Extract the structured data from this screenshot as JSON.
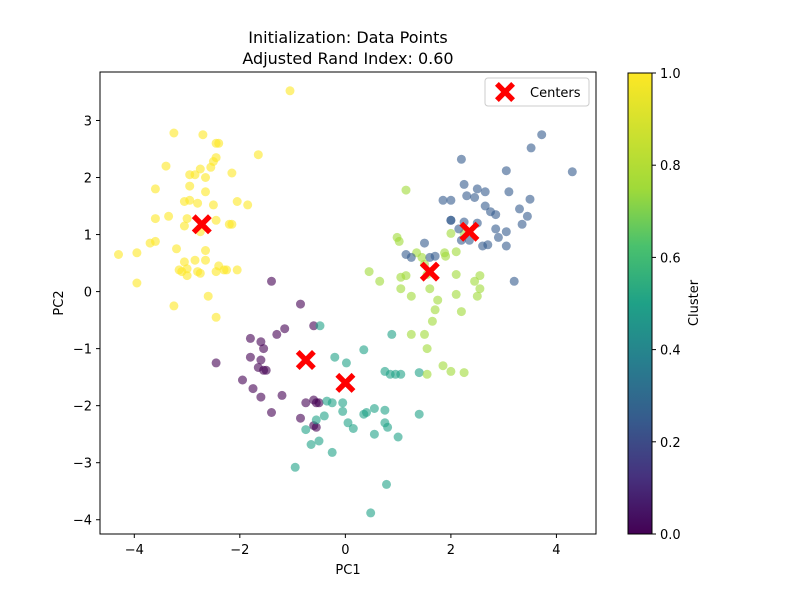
{
  "chart_data": {
    "type": "scatter",
    "title": "Initialization: Data Points",
    "subtitle": "Adjusted Rand Index: 0.60",
    "xlabel": "PC1",
    "ylabel": "PC2",
    "xlim": [
      -4.65,
      4.75
    ],
    "ylim": [
      -4.25,
      3.85
    ],
    "xticks": [
      -4,
      -2,
      0,
      2,
      4
    ],
    "yticks": [
      -4,
      -3,
      -2,
      -1,
      0,
      1,
      2,
      3
    ],
    "grid": false,
    "colorbar": {
      "label": "Cluster",
      "colormap": "viridis",
      "range": [
        0.0,
        1.0
      ],
      "ticks": [
        "0.0",
        "0.2",
        "0.4",
        "0.6",
        "0.8",
        "1.0"
      ]
    },
    "legend": {
      "position": "top-right",
      "entries": [
        "Centers"
      ]
    },
    "marker_alpha": 0.6,
    "clusters": [
      {
        "cluster_value": 0.0,
        "points": [
          [
            -1.4,
            0.18
          ],
          [
            -0.85,
            -0.22
          ],
          [
            -1.15,
            -0.65
          ],
          [
            -1.3,
            -0.75
          ],
          [
            -0.6,
            -0.6
          ],
          [
            -1.8,
            -0.82
          ],
          [
            -1.6,
            -0.88
          ],
          [
            -1.55,
            -1.0
          ],
          [
            -1.8,
            -1.15
          ],
          [
            -1.6,
            -1.2
          ],
          [
            -1.65,
            -1.33
          ],
          [
            -1.55,
            -1.38
          ],
          [
            -1.5,
            -1.38
          ],
          [
            -2.45,
            -1.25
          ],
          [
            -1.95,
            -1.55
          ],
          [
            -1.75,
            -1.7
          ],
          [
            -1.6,
            -1.85
          ],
          [
            -1.2,
            -1.82
          ],
          [
            -0.85,
            -2.22
          ],
          [
            -1.4,
            -2.12
          ],
          [
            -0.75,
            -1.95
          ],
          [
            -0.6,
            -1.9
          ],
          [
            -0.55,
            -1.95
          ],
          [
            -0.5,
            -1.95
          ],
          [
            -0.6,
            -2.35
          ],
          [
            -0.55,
            -2.38
          ]
        ]
      },
      {
        "cluster_value": 0.5,
        "points": [
          [
            -0.48,
            -0.6
          ],
          [
            -0.2,
            -1.15
          ],
          [
            0.02,
            -1.25
          ],
          [
            0.35,
            -1.02
          ],
          [
            0.88,
            -0.75
          ],
          [
            -0.25,
            -1.95
          ],
          [
            -0.35,
            -1.92
          ],
          [
            -0.05,
            -1.95
          ],
          [
            -0.4,
            -2.18
          ],
          [
            -0.55,
            -2.25
          ],
          [
            -0.75,
            -2.42
          ],
          [
            -0.5,
            -2.62
          ],
          [
            -0.65,
            -2.68
          ],
          [
            -0.25,
            -2.82
          ],
          [
            -0.05,
            -2.1
          ],
          [
            0.05,
            -2.3
          ],
          [
            0.15,
            -2.4
          ],
          [
            0.35,
            -2.15
          ],
          [
            0.4,
            -2.12
          ],
          [
            0.55,
            -2.5
          ],
          [
            0.75,
            -2.3
          ],
          [
            0.8,
            -2.38
          ],
          [
            1.0,
            -2.55
          ],
          [
            0.95,
            -1.45
          ],
          [
            1.05,
            -1.45
          ],
          [
            0.85,
            -1.45
          ],
          [
            0.75,
            -1.4
          ],
          [
            1.4,
            -1.42
          ],
          [
            1.4,
            -2.15
          ],
          [
            0.55,
            -2.05
          ],
          [
            0.75,
            -2.08
          ],
          [
            -0.95,
            -3.08
          ],
          [
            0.78,
            -3.38
          ],
          [
            0.48,
            -3.88
          ]
        ]
      },
      {
        "cluster_value": 0.75,
        "points": [
          [
            0.98,
            0.95
          ],
          [
            1.02,
            0.88
          ],
          [
            1.35,
            0.68
          ],
          [
            1.45,
            0.6
          ],
          [
            1.5,
            0.48
          ],
          [
            1.88,
            0.68
          ],
          [
            1.9,
            0.62
          ],
          [
            0.45,
            0.35
          ],
          [
            0.65,
            0.18
          ],
          [
            1.05,
            0.25
          ],
          [
            1.15,
            0.28
          ],
          [
            1.05,
            0.05
          ],
          [
            1.25,
            -0.08
          ],
          [
            1.55,
            0.3
          ],
          [
            1.6,
            0.05
          ],
          [
            1.75,
            -0.15
          ],
          [
            1.7,
            -0.32
          ],
          [
            1.65,
            -0.52
          ],
          [
            2.1,
            0.3
          ],
          [
            2.45,
            0.18
          ],
          [
            2.55,
            0.28
          ],
          [
            2.55,
            0.05
          ],
          [
            2.5,
            -0.08
          ],
          [
            2.1,
            -0.05
          ],
          [
            2.2,
            -0.35
          ],
          [
            1.25,
            -0.75
          ],
          [
            1.5,
            -0.75
          ],
          [
            1.55,
            -1.0
          ],
          [
            1.85,
            -1.3
          ],
          [
            2.0,
            -1.4
          ],
          [
            2.25,
            -1.42
          ],
          [
            1.55,
            -1.45
          ],
          [
            1.15,
            1.78
          ],
          [
            2.25,
            1.02
          ],
          [
            2.1,
            0.7
          ],
          [
            2.0,
            1.02
          ]
        ]
      },
      {
        "cluster_value": 0.25,
        "points": [
          [
            2.2,
            2.32
          ],
          [
            2.25,
            1.88
          ],
          [
            3.05,
            2.12
          ],
          [
            3.05,
            0.8
          ],
          [
            3.72,
            2.75
          ],
          [
            3.52,
            2.52
          ],
          [
            4.3,
            2.1
          ],
          [
            2.5,
            1.8
          ],
          [
            2.65,
            1.75
          ],
          [
            3.1,
            1.75
          ],
          [
            2.3,
            1.68
          ],
          [
            2.45,
            1.65
          ],
          [
            3.5,
            1.62
          ],
          [
            1.85,
            1.6
          ],
          [
            2.0,
            1.6
          ],
          [
            2.65,
            1.5
          ],
          [
            2.85,
            1.35
          ],
          [
            2.75,
            1.4
          ],
          [
            3.3,
            1.45
          ],
          [
            3.45,
            1.32
          ],
          [
            2.0,
            1.25
          ],
          [
            2.25,
            1.22
          ],
          [
            2.5,
            1.2
          ],
          [
            2.85,
            1.1
          ],
          [
            3.05,
            1.05
          ],
          [
            2.9,
            0.95
          ],
          [
            3.35,
            1.18
          ],
          [
            2.15,
            1.1
          ],
          [
            2.7,
            0.82
          ],
          [
            2.6,
            0.8
          ],
          [
            2.2,
            0.9
          ],
          [
            2.35,
            0.9
          ],
          [
            1.5,
            0.85
          ],
          [
            1.7,
            0.62
          ],
          [
            1.6,
            0.6
          ],
          [
            3.2,
            0.18
          ],
          [
            1.15,
            0.65
          ],
          [
            1.25,
            0.6
          ],
          [
            2.0,
            1.25
          ]
        ]
      },
      {
        "cluster_value": 1.0,
        "points": [
          [
            -1.05,
            3.52
          ],
          [
            -3.25,
            2.78
          ],
          [
            -2.7,
            2.75
          ],
          [
            -2.45,
            2.6
          ],
          [
            -2.4,
            2.6
          ],
          [
            -2.45,
            2.35
          ],
          [
            -2.5,
            2.28
          ],
          [
            -2.55,
            2.18
          ],
          [
            -2.75,
            2.15
          ],
          [
            -2.85,
            2.05
          ],
          [
            -3.4,
            2.2
          ],
          [
            -1.65,
            2.4
          ],
          [
            -2.15,
            2.08
          ],
          [
            -2.65,
            2.0
          ],
          [
            -2.95,
            2.05
          ],
          [
            -3.6,
            1.8
          ],
          [
            -2.95,
            1.85
          ],
          [
            -2.65,
            1.75
          ],
          [
            -1.85,
            1.52
          ],
          [
            -2.05,
            1.58
          ],
          [
            -2.95,
            1.6
          ],
          [
            -3.05,
            1.58
          ],
          [
            -2.8,
            1.55
          ],
          [
            -2.5,
            1.52
          ],
          [
            -3.35,
            1.32
          ],
          [
            -3.0,
            1.28
          ],
          [
            -3.6,
            1.28
          ],
          [
            -2.45,
            1.25
          ],
          [
            -2.2,
            1.18
          ],
          [
            -2.15,
            1.18
          ],
          [
            -2.75,
            1.05
          ],
          [
            -3.05,
            1.15
          ],
          [
            -2.65,
            0.72
          ],
          [
            -3.6,
            0.88
          ],
          [
            -3.7,
            0.85
          ],
          [
            -4.3,
            0.65
          ],
          [
            -3.95,
            0.68
          ],
          [
            -3.2,
            0.75
          ],
          [
            -2.85,
            0.55
          ],
          [
            -2.65,
            0.55
          ],
          [
            -2.4,
            0.45
          ],
          [
            -3.05,
            0.52
          ],
          [
            -3.0,
            0.4
          ],
          [
            -3.15,
            0.38
          ],
          [
            -3.1,
            0.35
          ],
          [
            -2.8,
            0.35
          ],
          [
            -2.75,
            0.32
          ],
          [
            -2.45,
            0.35
          ],
          [
            -2.3,
            0.38
          ],
          [
            -2.25,
            0.38
          ],
          [
            -2.05,
            0.38
          ],
          [
            -3.95,
            0.15
          ],
          [
            -3.0,
            0.28
          ],
          [
            -3.25,
            -0.25
          ],
          [
            -2.6,
            -0.08
          ],
          [
            -2.45,
            -0.45
          ]
        ]
      }
    ],
    "centers": [
      [
        -2.72,
        1.18
      ],
      [
        -0.75,
        -1.2
      ],
      [
        0.0,
        -1.6
      ],
      [
        1.6,
        0.35
      ],
      [
        2.35,
        1.05
      ]
    ]
  }
}
